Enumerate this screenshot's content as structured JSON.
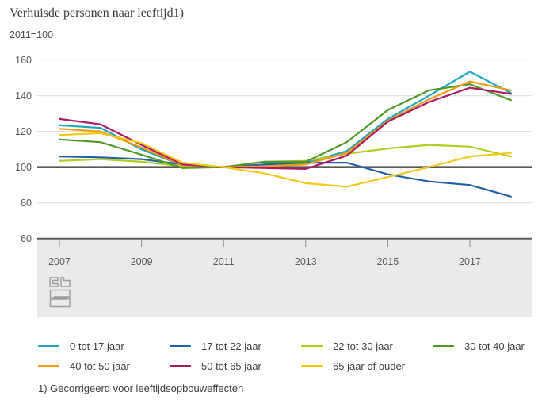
{
  "title": "Verhuisde personen naar leeftijd1)",
  "subtitle": "2011=100",
  "footnote": "1) Gecorrigeerd voor leeftijdsopbouweffecten",
  "logo_name": "cbs-logo",
  "chart_data": {
    "type": "line",
    "x": [
      2007,
      2008,
      2009,
      2010,
      2011,
      2012,
      2013,
      2014,
      2015,
      2016,
      2017,
      2018
    ],
    "x_tick_labels": [
      "2007",
      "2009",
      "2011",
      "2013",
      "2015",
      "2017"
    ],
    "ylim": [
      60,
      160
    ],
    "y_ticks": [
      160,
      140,
      120,
      100,
      80,
      60
    ],
    "baseline": 100,
    "grid": true,
    "legend_position": "bottom",
    "layout": {
      "grid_color": "#d9d9d9",
      "axis_color": "#58585b",
      "band_color": "#eaeaea",
      "tick_color": "#8c8c8c",
      "tick_label_color": "#595959"
    },
    "series": [
      {
        "name": "0 tot 17 jaar",
        "color": "#1ba6c4",
        "values": [
          123.5,
          122,
          110,
          101,
          100,
          101.5,
          102.5,
          109,
          127,
          140,
          153.5,
          141.5
        ]
      },
      {
        "name": "17 tot 22 jaar",
        "color": "#2060a7",
        "values": [
          106,
          105.5,
          104.5,
          101.5,
          100,
          101.5,
          102.5,
          102.5,
          96,
          92,
          90,
          83.5
        ]
      },
      {
        "name": "22 tot 30 jaar",
        "color": "#b4cc1f",
        "values": [
          103.5,
          104.5,
          103,
          100.5,
          100,
          103,
          103.5,
          107.5,
          110.5,
          112.5,
          111.5,
          106
        ]
      },
      {
        "name": "30 tot 40 jaar",
        "color": "#4e9a28",
        "values": [
          115.5,
          114,
          107,
          99.5,
          100,
          103,
          103,
          114,
          132,
          143,
          146.5,
          137.5
        ]
      },
      {
        "name": "40 tot 50 jaar",
        "color": "#ef9b13",
        "values": [
          121.5,
          120,
          111,
          101,
          100,
          100.5,
          101.5,
          108,
          126,
          138,
          148,
          143
        ]
      },
      {
        "name": "50 tot 65 jaar",
        "color": "#ac1a68",
        "values": [
          127,
          124,
          112.5,
          101.5,
          100,
          99.5,
          99,
          106.5,
          125.5,
          136.5,
          144.5,
          141
        ]
      },
      {
        "name": "65 jaar of ouder",
        "color": "#f2c816",
        "values": [
          118,
          119,
          113.5,
          102.5,
          100,
          96.5,
          91,
          89,
          94.5,
          100,
          106,
          108
        ]
      }
    ]
  }
}
